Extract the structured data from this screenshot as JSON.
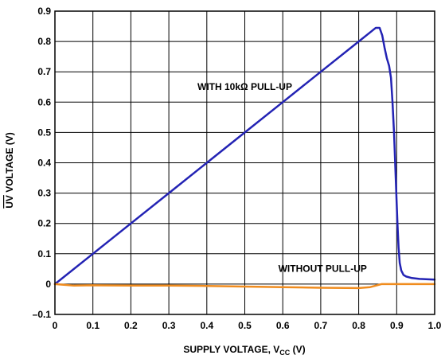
{
  "chart_data": {
    "type": "line",
    "xlabel": {
      "main": "SUPPLY VOLTAGE, V",
      "subscript": "CC",
      "unit": " (V)"
    },
    "ylabel": {
      "overlined": "UV",
      "rest": " VOLTAGE (V)"
    },
    "xlim": [
      0,
      1.0
    ],
    "ylim": [
      -0.1,
      0.9
    ],
    "grid": true,
    "x_ticks": [
      "0",
      "0.1",
      "0.2",
      "0.3",
      "0.4",
      "0.5",
      "0.6",
      "0.7",
      "0.8",
      "0.9",
      "1.0"
    ],
    "y_ticks": [
      "–0.1",
      "0",
      "0.1",
      "0.2",
      "0.3",
      "0.4",
      "0.5",
      "0.6",
      "0.7",
      "0.8",
      "0.9"
    ],
    "series": [
      {
        "name": "WITH 10kΩ PULL-UP",
        "color": "#2323b4",
        "x": [
          0,
          0.1,
          0.2,
          0.3,
          0.4,
          0.5,
          0.6,
          0.7,
          0.8,
          0.83,
          0.845,
          0.855,
          0.862,
          0.868,
          0.874,
          0.88,
          0.885,
          0.889,
          0.893,
          0.896,
          0.899,
          0.902,
          0.905,
          0.908,
          0.912,
          0.918,
          0.925,
          0.94,
          0.96,
          1.0
        ],
        "y": [
          0,
          0.1,
          0.2,
          0.3,
          0.4,
          0.5,
          0.6,
          0.7,
          0.8,
          0.83,
          0.845,
          0.845,
          0.82,
          0.78,
          0.745,
          0.72,
          0.68,
          0.6,
          0.5,
          0.4,
          0.3,
          0.2,
          0.12,
          0.07,
          0.045,
          0.03,
          0.025,
          0.02,
          0.017,
          0.015
        ]
      },
      {
        "name": "WITHOUT PULL-UP",
        "color": "#f08c1e",
        "x": [
          0,
          0.05,
          0.1,
          0.2,
          0.3,
          0.4,
          0.5,
          0.6,
          0.7,
          0.8,
          0.83,
          0.86,
          0.9,
          1.0
        ],
        "y": [
          0,
          -0.005,
          -0.004,
          -0.005,
          -0.005,
          -0.006,
          -0.008,
          -0.01,
          -0.012,
          -0.013,
          -0.01,
          0,
          0,
          0
        ]
      }
    ],
    "annotations": [
      {
        "text": "WITH 10kΩ PULL-UP",
        "x": 0.5,
        "y": 0.64
      },
      {
        "text": "WITHOUT PULL-UP",
        "x": 0.705,
        "y": 0.04
      }
    ]
  }
}
